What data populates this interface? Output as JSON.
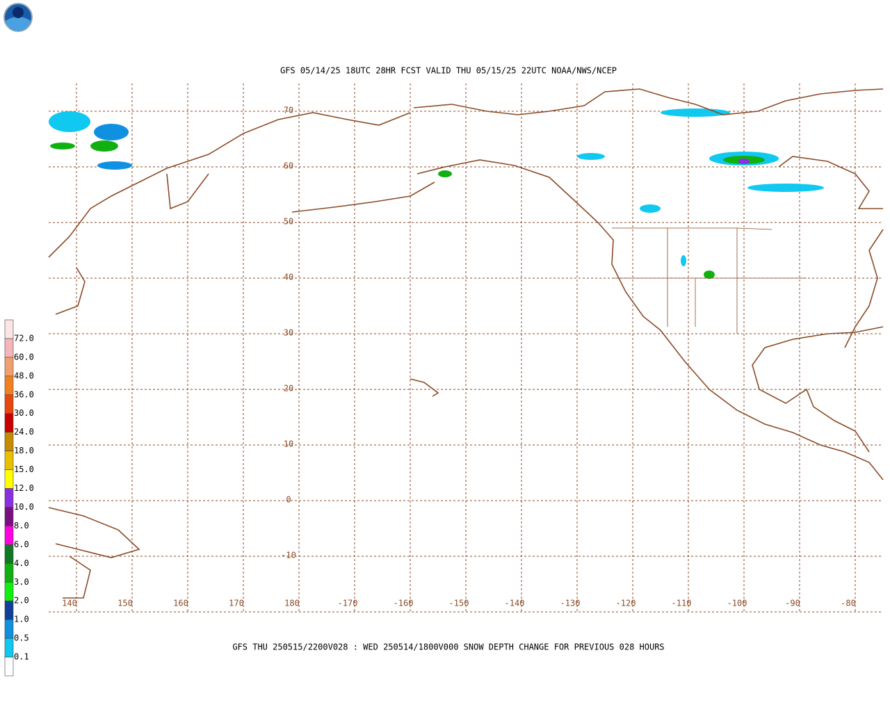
{
  "header": {
    "title": "GFS 05/14/25 18UTC 28HR FCST VALID THU 05/15/25 22UTC NOAA/NWS/NCEP"
  },
  "footer": "GFS THU 250515/2200V028 : WED 250514/1800V000 SNOW DEPTH CHANGE FOR PREVIOUS 028 HOURS",
  "map": {
    "lat_labels": [
      "70",
      "60",
      "50",
      "40",
      "30",
      "20",
      "10",
      "0",
      "-10"
    ],
    "lon_labels": [
      "140",
      "150",
      "160",
      "170",
      "180",
      "-170",
      "-160",
      "-150",
      "-140",
      "-130",
      "-120",
      "-110",
      "-100",
      "-90",
      "-80"
    ]
  },
  "legend": {
    "labels": [
      "72.0",
      "60.0",
      "48.0",
      "36.0",
      "30.0",
      "24.0",
      "18.0",
      "15.0",
      "12.0",
      "10.0",
      "8.0",
      "6.0",
      "4.0",
      "3.0",
      "2.0",
      "1.0",
      "0.5",
      "0.1"
    ],
    "colors": [
      "#fbe6e6",
      "#f4b6b8",
      "#f0a070",
      "#f08020",
      "#e84810",
      "#c80000",
      "#c88a00",
      "#e8c000",
      "#ffff00",
      "#8a30e0",
      "#7a1080",
      "#ff00e0",
      "#107820",
      "#10b010",
      "#10f010",
      "#104098",
      "#1090e0",
      "#10c8f0",
      "#ffffff"
    ]
  }
}
